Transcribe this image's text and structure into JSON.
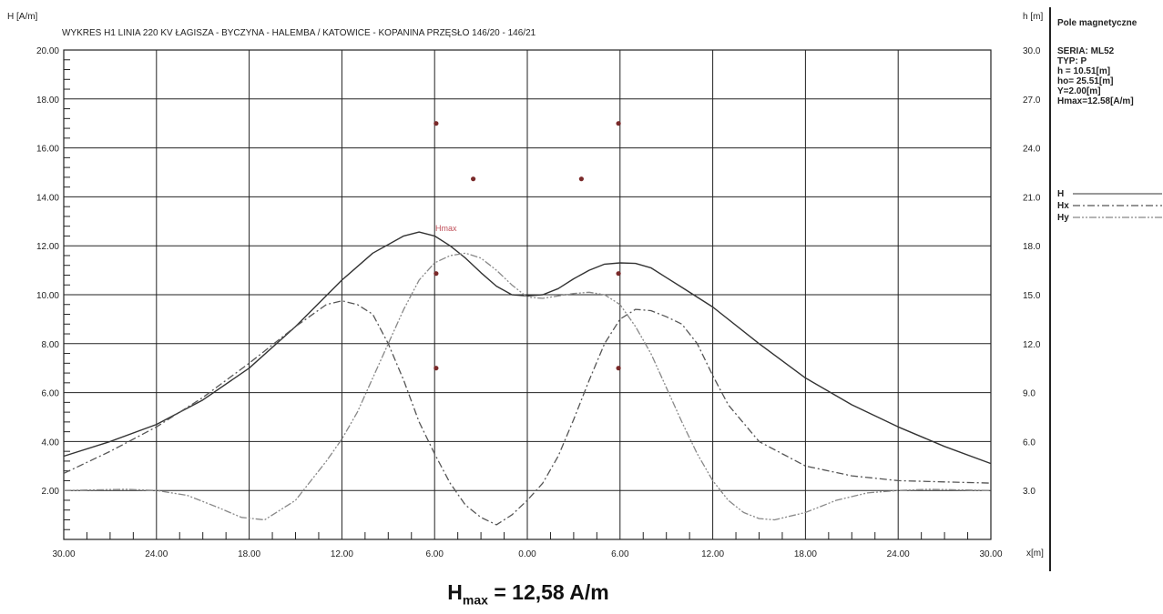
{
  "chart_data": {
    "type": "line",
    "title": "WYKRES H1  LINIA 220 KV ŁAGISZA - BYCZYNA - HALEMBA / KATOWICE - KOPANINA PRZĘSŁO 146/20 - 146/21",
    "ylabel": "H [A/m]",
    "y2label": "h [m]",
    "xlabel": "x[m]",
    "xlim": [
      -30,
      30
    ],
    "ylim": [
      0,
      20
    ],
    "y2lim": [
      0,
      30
    ],
    "x_tick_labels": [
      "30.00",
      "24.00",
      "18.00",
      "12.00",
      "6.00",
      "0.00",
      "6.00",
      "12.00",
      "18.00",
      "24.00",
      "30.00"
    ],
    "y_tick_labels": [
      "2.00",
      "4.00",
      "6.00",
      "8.00",
      "10.00",
      "12.00",
      "14.00",
      "16.00",
      "18.00",
      "20.00"
    ],
    "y2_tick_labels": [
      "3.0",
      "6.0",
      "9.0",
      "12.0",
      "15.0",
      "18.0",
      "21.0",
      "24.0",
      "27.0",
      "30.0"
    ],
    "grid": true,
    "series": [
      {
        "name": "H",
        "style": "solid",
        "color": "#333333",
        "x": [
          -30,
          -27,
          -24,
          -21,
          -18,
          -15,
          -12,
          -10,
          -8,
          -7,
          -6,
          -5,
          -4,
          -3,
          -2,
          -1,
          0,
          1,
          2,
          3,
          4,
          5,
          6,
          7,
          8,
          9,
          10,
          12,
          15,
          18,
          21,
          24,
          27,
          30
        ],
        "y": [
          3.4,
          4.0,
          4.7,
          5.7,
          7.0,
          8.7,
          10.6,
          11.7,
          12.4,
          12.56,
          12.4,
          12.0,
          11.5,
          10.9,
          10.35,
          10.0,
          9.95,
          10.0,
          10.25,
          10.65,
          11.0,
          11.25,
          11.3,
          11.28,
          11.1,
          10.7,
          10.3,
          9.5,
          8.0,
          6.6,
          5.5,
          4.6,
          3.8,
          3.1
        ]
      },
      {
        "name": "Hx",
        "style": "dash-dot",
        "color": "#555555",
        "x": [
          -30,
          -27,
          -24,
          -21,
          -18,
          -15,
          -13,
          -12,
          -11,
          -10,
          -9,
          -8,
          -7,
          -6,
          -5,
          -4,
          -3,
          -2,
          -1,
          0,
          1,
          2,
          3,
          4,
          5,
          6,
          7,
          8,
          9,
          10,
          11,
          12,
          13,
          15,
          18,
          21,
          24,
          27,
          30
        ],
        "y": [
          2.7,
          3.6,
          4.6,
          5.8,
          7.2,
          8.7,
          9.6,
          9.75,
          9.6,
          9.2,
          8.0,
          6.5,
          4.8,
          3.5,
          2.3,
          1.4,
          0.9,
          0.6,
          1.0,
          1.6,
          2.3,
          3.4,
          4.9,
          6.5,
          8.0,
          9.0,
          9.4,
          9.35,
          9.1,
          8.8,
          8.0,
          6.7,
          5.5,
          4.0,
          3.0,
          2.6,
          2.4,
          2.35,
          2.3
        ]
      },
      {
        "name": "Hy",
        "style": "dash-dot-dot",
        "color": "#888888",
        "x": [
          -30,
          -26,
          -24,
          -22,
          -20,
          -18.5,
          -17,
          -15,
          -13,
          -12,
          -11,
          -10,
          -9,
          -8,
          -7,
          -6,
          -5,
          -4,
          -3,
          -2,
          -1,
          0,
          1,
          2,
          3,
          4,
          5,
          6,
          7,
          8,
          9,
          10,
          11,
          12,
          13,
          14,
          15,
          16,
          18,
          20,
          22,
          24,
          26,
          30
        ],
        "y": [
          2.0,
          2.05,
          2.0,
          1.8,
          1.3,
          0.9,
          0.8,
          1.6,
          3.2,
          4.1,
          5.2,
          6.6,
          8.0,
          9.4,
          10.6,
          11.3,
          11.6,
          11.7,
          11.5,
          11.0,
          10.4,
          9.9,
          9.85,
          9.95,
          10.05,
          10.1,
          10.0,
          9.6,
          8.7,
          7.6,
          6.2,
          4.8,
          3.5,
          2.4,
          1.6,
          1.1,
          0.85,
          0.8,
          1.1,
          1.6,
          1.9,
          2.0,
          2.05,
          2.0
        ]
      }
    ],
    "conductors": [
      {
        "x": -5.9,
        "h": 25.5
      },
      {
        "x": 5.9,
        "h": 25.5
      },
      {
        "x": -3.5,
        "h": 22.1
      },
      {
        "x": 3.5,
        "h": 22.1
      },
      {
        "x": -5.9,
        "h": 16.3
      },
      {
        "x": 5.9,
        "h": 16.3
      },
      {
        "x": -5.9,
        "h": 10.5
      },
      {
        "x": 5.9,
        "h": 10.5
      }
    ],
    "annotations": [
      {
        "text": "Hmax",
        "x": -6,
        "y": 12.58
      }
    ],
    "legend_position": "right",
    "legend": [
      "H",
      "Hx",
      "Hy"
    ]
  },
  "side_panel": {
    "heading": "Pole magnetyczne",
    "lines": [
      "SERIA: ML52",
      "TYP: P",
      "h = 10.51[m]",
      "ho= 25.51[m]",
      "Y=2.00[m]",
      "Hmax=12.58[A/m]"
    ]
  },
  "caption": {
    "prefix": "H",
    "subscript": "max",
    "suffix": " = 12,58 A/m"
  },
  "colors": {
    "grid": "#222222",
    "conductor": "#7a2a2a",
    "annotation": "#c0505a"
  }
}
